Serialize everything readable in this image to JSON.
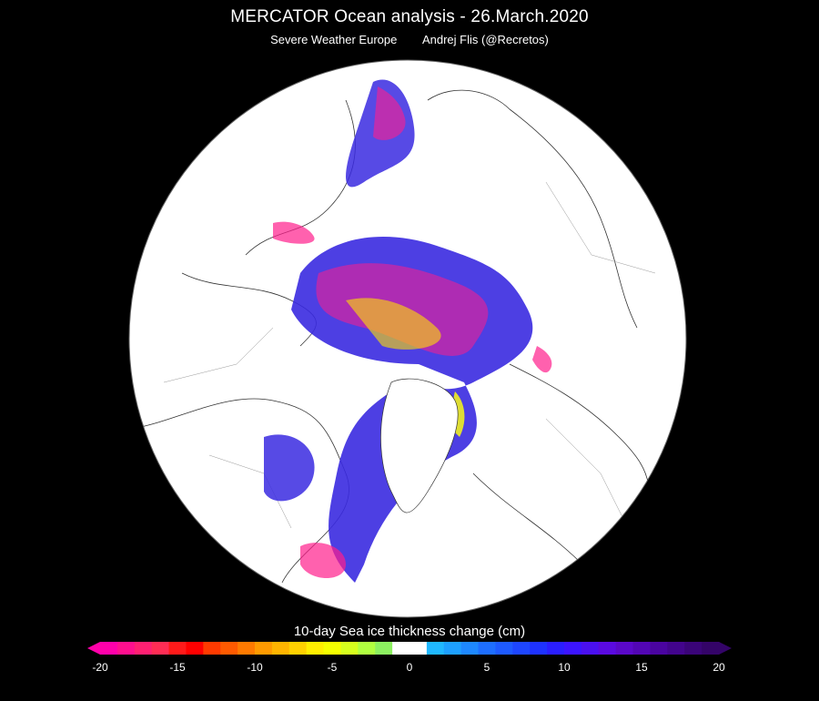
{
  "header": {
    "title": "MERCATOR Ocean analysis -  26.March.2020",
    "source": "Severe Weather Europe",
    "author": "Andrej Flis (@Recretos)"
  },
  "legend": {
    "title": "10-day  Sea ice thickness change (cm)",
    "min": -20,
    "max": 20,
    "ticks": [
      "-20",
      "-15",
      "-10",
      "-5",
      "0",
      "5",
      "10",
      "15",
      "20"
    ],
    "colors": [
      "#ff00aa",
      "#ff0f8e",
      "#ff2072",
      "#ff2d55",
      "#ff1a1a",
      "#ff0000",
      "#ff3a00",
      "#ff5a00",
      "#ff7a00",
      "#ff9a00",
      "#ffb400",
      "#ffd000",
      "#ffee00",
      "#f5ff00",
      "#d6ff1e",
      "#b0ff40",
      "#8cf060",
      "#ffffff",
      "#ffffff",
      "#20b8ff",
      "#1ea0ff",
      "#1e88ff",
      "#1e6eff",
      "#1e5aff",
      "#1e46ff",
      "#1e32ff",
      "#2a1eff",
      "#3c14ff",
      "#4a10f0",
      "#5a0ae0",
      "#5a08c8",
      "#5206b4",
      "#4a04a0",
      "#42048c",
      "#3a0478",
      "#340468"
    ]
  }
}
